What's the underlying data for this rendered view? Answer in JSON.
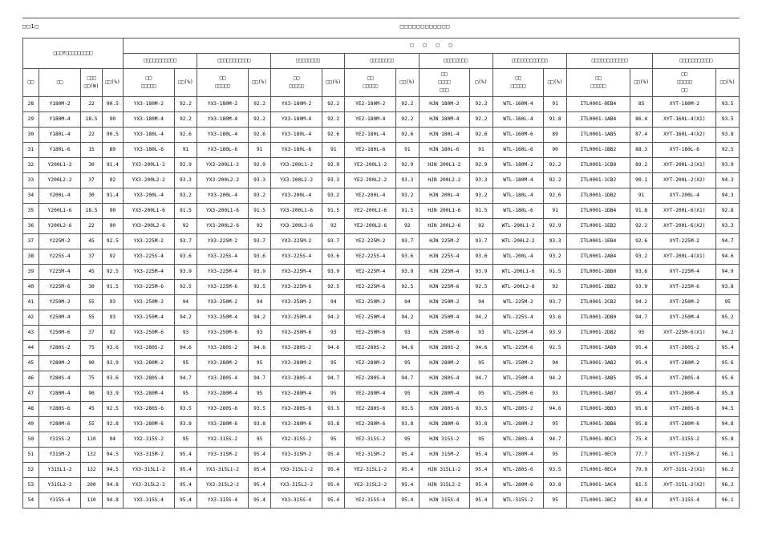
{
  "title_left": "□□1□",
  "title_right": "□□□□□□□□□□□□",
  "super_header": "□　　□　　□　　□",
  "group_header": "□□□Y□□□□□□□□□",
  "sub_headers": [
    "□□□□□□□□□□□",
    "□□□□□□□□□□□",
    "□□□□□□□□",
    "□□□□□□□□",
    "□□□□□□□□",
    "□□□□□□□□□□□□",
    "□□□□□□□□□□□□",
    "□□□□□□□□□□□"
  ],
  "col_labels": {
    "c1": "□□",
    "c2": "□□",
    "c3": "□□□\n□□(W)",
    "c4": "□□(%)",
    "c5": "□□\n□□□□□",
    "c6": "□□(%)",
    "c7": "□□\n□□□□□",
    "c8": "□□(%)",
    "c9": "□□\n□□□□□",
    "c10": "□□(%)",
    "c11": "□□\n□□□□□",
    "c12": "□□(%)",
    "c13": "□□\n□□□□\n□□□",
    "c14": "□(%)",
    "c15": "□□\n□□□□□",
    "c16": "□□(%)",
    "c17": "□□\n□□□□□",
    "c18": "□□(%)",
    "c19": "□□\n□□□□□\n□□",
    "c20": "□□(%)"
  },
  "rows": [
    [
      "28",
      "Y180M-2",
      "22",
      "90.5",
      "YX3-180M-2",
      "92.2",
      "YX3-180M-2",
      "92.2",
      "YX3-180M-2",
      "92.2",
      "YE2-180M-2",
      "92.2",
      "HJN 180M-2",
      "92.2",
      "WTL-160M-4",
      "91",
      "ITL0001-0EB4",
      "85",
      "XYT-180M-2",
      "93.5"
    ],
    [
      "29",
      "Y180M-4",
      "18.5",
      "90",
      "YX3-180M-4",
      "92.2",
      "YX3-180M-4",
      "92.2",
      "YX3-180M-4",
      "92.2",
      "YE2-180M-4",
      "92.2",
      "HJN 180M-4",
      "92.2",
      "WTL-160L-4",
      "91.8",
      "ITL0001-1AB4",
      "86.4",
      "XYT-160L-4(X1)",
      "93.5"
    ],
    [
      "30",
      "Y180L-4",
      "22",
      "90.5",
      "YX3-180L-4",
      "92.6",
      "YX3-180L-4",
      "92.6",
      "YX3-180L-4",
      "92.6",
      "YE2-180L-4",
      "92.6",
      "HJN 180L-4",
      "92.6",
      "WTL-160M-6",
      "89",
      "ITL0001-1AB5",
      "87.4",
      "XYT-160L-4(X2)",
      "93.8"
    ],
    [
      "31",
      "Y180L-6",
      "15",
      "89",
      "YX3-180L-6",
      "91",
      "YX3-180L-6",
      "91",
      "YX3-180L-6",
      "91",
      "YE2-180L-6",
      "91",
      "HJN 180L-6",
      "91",
      "WTL-160L-6",
      "90",
      "ITL0001-1BB2",
      "88.3",
      "XYT-180L-6",
      "92.5"
    ],
    [
      "32",
      "Y200L1-2",
      "30",
      "91.4",
      "YX3-200L1-2",
      "92.9",
      "YX3-200L1-2",
      "92.9",
      "YX3-200L1-2",
      "92.9",
      "YE2-200L1-2",
      "92.9",
      "HJN 200L1-2",
      "92.9",
      "WTL-180M-2",
      "92.2",
      "ITL0001-1CB0",
      "89.2",
      "XYT-200L-2(X1)",
      "93.9"
    ],
    [
      "33",
      "Y200L2-2",
      "37",
      "92",
      "YX3-200L2-2",
      "93.3",
      "YX3-200L2-2",
      "93.3",
      "YX3-200L2-2",
      "93.3",
      "YE2-200L2-2",
      "93.3",
      "HJN 200L2-2",
      "93.3",
      "WTL-180M-4",
      "92.2",
      "ITL0001-1CB2",
      "90.1",
      "XYT-200L-2(X2)",
      "94.3"
    ],
    [
      "34",
      "Y200L-4",
      "30",
      "91.4",
      "YX3-200L-4",
      "93.2",
      "YX3-200L-4",
      "93.2",
      "YX3-200L-4",
      "93.2",
      "YE2-200L-4",
      "93.2",
      "HJN 200L-4",
      "93.2",
      "WTL-180L-4",
      "92.6",
      "ITL0001-1DB2",
      "91",
      "XYT-200L-4",
      "94.3"
    ],
    [
      "35",
      "Y200L1-6",
      "18.5",
      "90",
      "YX3-200L1-6",
      "91.5",
      "YX3-200L1-6",
      "91.5",
      "YX3-200L1-6",
      "91.5",
      "YE2-200L1-6",
      "91.5",
      "HJN 200L1-6",
      "91.5",
      "WTL-180L-6",
      "91",
      "ITL0001-1DB4",
      "91.8",
      "XYT-200L-6(X1)",
      "92.8"
    ],
    [
      "36",
      "Y200L2-6",
      "22",
      "90",
      "YX3-200L2-6",
      "92",
      "YX3-200L2-6",
      "92",
      "YX3-200L2-6",
      "92",
      "YE2-200L2-6",
      "92",
      "HJN 200L2-6",
      "92",
      "WTL-200L1-2",
      "92.9",
      "ITL0001-1EB2",
      "92.2",
      "XYT-200L-6(X2)",
      "93.3"
    ],
    [
      "37",
      "Y225M-2",
      "45",
      "92.5",
      "YX3-225M-2",
      "93.7",
      "YX3-225M-2",
      "93.7",
      "YX3-225M-2",
      "93.7",
      "YE2-225M-2",
      "93.7",
      "HJN 225M-2",
      "93.7",
      "WTL-200L2-2",
      "93.3",
      "ITL0001-1EB4",
      "92.6",
      "XYT-225M-2",
      "94.7"
    ],
    [
      "38",
      "Y225S-4",
      "37",
      "92",
      "YX3-225S-4",
      "93.6",
      "YX3-225S-4",
      "93.6",
      "YX3-225S-4",
      "93.6",
      "YE2-225S-4",
      "93.6",
      "HJN 225S-4",
      "93.6",
      "WTL-200L-4",
      "93.2",
      "ITL0001-2AB4",
      "93.2",
      "XYT-200L-4(X1)",
      "94.6"
    ],
    [
      "39",
      "Y225M-4",
      "45",
      "92.5",
      "YX3-225M-4",
      "93.9",
      "YX3-225M-4",
      "93.9",
      "YX3-225M-4",
      "93.9",
      "YE2-225M-4",
      "93.9",
      "HJN 225M-4",
      "93.9",
      "WTL-200L1-6",
      "91.5",
      "ITL0001-2BB0",
      "93.6",
      "XYT-225M-4",
      "94.9"
    ],
    [
      "40",
      "Y225M-6",
      "30",
      "91.5",
      "YX3-225M-6",
      "92.5",
      "YX3-225M-6",
      "92.5",
      "YX3-225M-6",
      "92.5",
      "YE2-225M-6",
      "92.5",
      "HJN 225M-6",
      "92.5",
      "WTL-200L2-6",
      "92",
      "ITL0001-2BB2",
      "93.9",
      "XYT-225M-6",
      "93.8"
    ],
    [
      "41",
      "Y250M-2",
      "55",
      "93",
      "YX3-250M-2",
      "94",
      "YX3-250M-2",
      "94",
      "YX3-250M-2",
      "94",
      "YE2-250M-2",
      "94",
      "HJN 250M-2",
      "94",
      "WTL-225M-2",
      "93.7",
      "ITL0001-2CB2",
      "94.2",
      "XYT-250M-2",
      "95"
    ],
    [
      "42",
      "Y250M-4",
      "55",
      "93",
      "YX3-250M-4",
      "94.2",
      "YX3-250M-4",
      "94.2",
      "YX3-250M-4",
      "94.2",
      "YE2-250M-4",
      "94.2",
      "HJN 250M-4",
      "94.2",
      "WTL-225S-4",
      "93.6",
      "ITL0001-2DB0",
      "94.7",
      "XYT-250M-4",
      "95.2"
    ],
    [
      "43",
      "Y250M-6",
      "37",
      "92",
      "YX3-250M-6",
      "93",
      "YX3-250M-6",
      "93",
      "YX3-250M-6",
      "93",
      "YE2-250M-6",
      "93",
      "HJN 250M-6",
      "93",
      "WTL-225M-4",
      "93.9",
      "ITL0001-2DB2",
      "95",
      "XYT-225M-6(X1)",
      "94.2"
    ],
    [
      "44",
      "Y280S-2",
      "75",
      "93.6",
      "YX3-280S-2",
      "94.6",
      "YX3-280S-2",
      "94.6",
      "YX3-280S-2",
      "94.6",
      "YE2-280S-2",
      "94.6",
      "HJN 280S-2",
      "94.6",
      "WTL-225M-6",
      "92.5",
      "ITL0001-3AB0",
      "95.4",
      "XYT-280S-2",
      "95.4"
    ],
    [
      "45",
      "Y280M-2",
      "90",
      "93.9",
      "YX3-280M-2",
      "95",
      "YX3-280M-2",
      "95",
      "YX3-280M-2",
      "95",
      "YE2-280M-2",
      "95",
      "HJN 280M-2",
      "95",
      "WTL-250M-2",
      "94",
      "ITL0001-3AB2",
      "95.4",
      "XYT-280M-2",
      "95.6"
    ],
    [
      "46",
      "Y280S-4",
      "75",
      "93.6",
      "YX3-280S-4",
      "94.7",
      "YX3-280S-4",
      "94.7",
      "YX3-280S-4",
      "94.7",
      "YE2-280S-4",
      "94.7",
      "HJN 280S-4",
      "94.7",
      "WTL-250M-4",
      "94.2",
      "ITL0001-3AB5",
      "95.4",
      "XYT-280S-4",
      "95.6"
    ],
    [
      "47",
      "Y280M-4",
      "90",
      "93.9",
      "YX3-280M-4",
      "95",
      "YX3-280M-4",
      "95",
      "YX3-280M-4",
      "95",
      "YE2-280M-4",
      "95",
      "HJN 280M-4",
      "95",
      "WTL-250M-6",
      "93",
      "ITL0001-3AB7",
      "95.4",
      "XYT-280M-4",
      "95.8"
    ],
    [
      "48",
      "Y280S-6",
      "45",
      "92.5",
      "YX3-280S-6",
      "93.5",
      "YX3-280S-6",
      "93.5",
      "YX3-280S-6",
      "93.5",
      "YE2-280S-6",
      "93.5",
      "HJN 280S-6",
      "93.5",
      "WTL-280S-2",
      "94.6",
      "ITL0001-3BB3",
      "95.8",
      "XYT-280S-6",
      "94.5"
    ],
    [
      "49",
      "Y280M-6",
      "55",
      "92.8",
      "YX3-280M-6",
      "93.8",
      "YX3-280M-6",
      "93.8",
      "YX3-280M-6",
      "93.8",
      "YE2-280M-6",
      "93.8",
      "HJN 280M-6",
      "93.8",
      "WTL-280M-2",
      "95",
      "ITL0001-3BB6",
      "95.8",
      "XYT-280M-6",
      "94.8"
    ],
    [
      "50",
      "Y315S-2",
      "110",
      "94",
      "YX2-315S-2",
      "95",
      "YX2-315S-2",
      "95",
      "YX2-315S-2",
      "95",
      "YE2-315S-2",
      "95",
      "HJN 315S-2",
      "95",
      "WTL-280S-4",
      "94.7",
      "ITL0001-0DC3",
      "75.4",
      "XYT-315S-2",
      "95.8"
    ],
    [
      "51",
      "Y315M-2",
      "132",
      "94.5",
      "YX3-315M-2",
      "95.4",
      "YX3-315M-2",
      "95.4",
      "YX3-315M-2",
      "95.4",
      "YE2-315M-2",
      "95.4",
      "HJN 315M-2",
      "95.4",
      "WTL-280M-4",
      "95",
      "ITL0001-0EC0",
      "77.7",
      "XYT-315M-2",
      "96.1"
    ],
    [
      "52",
      "Y315L1-2",
      "132",
      "94.5",
      "YX3-315L1-2",
      "95.4",
      "YX3-315L1-2",
      "95.4",
      "YX3-315L1-2",
      "95.4",
      "YE2-315L1-2",
      "95.4",
      "HJN 315L1-2",
      "95.4",
      "WTL-280S-6",
      "93.5",
      "ITL0001-0EC4",
      "79.9",
      "XYT-315L-2(X1)",
      "96.2"
    ],
    [
      "53",
      "Y315L2-2",
      "200",
      "94.8",
      "YX3-315L2-2",
      "95.4",
      "YX3-315L2-2",
      "95.4",
      "YX3-315L2-2",
      "95.4",
      "YE2-315L2-2",
      "95.4",
      "HJN 315L2-2",
      "95.4",
      "WTL-280M-6",
      "93.8",
      "ITL0001-1AC4",
      "81.5",
      "XYT-315L-2(X2)",
      "96.2"
    ],
    [
      "54",
      "Y315S-4",
      "110",
      "94.8",
      "YX3-315S-4",
      "95.4",
      "YX3-315S-4",
      "95.4",
      "YX3-315S-4",
      "95.4",
      "YE2-315S-4",
      "95.4",
      "HJN 315S-4",
      "95.4",
      "WTL-315S-2",
      "95",
      "ITL0001-1BC2",
      "83.4",
      "XYT-315S-4",
      "96.1"
    ]
  ]
}
